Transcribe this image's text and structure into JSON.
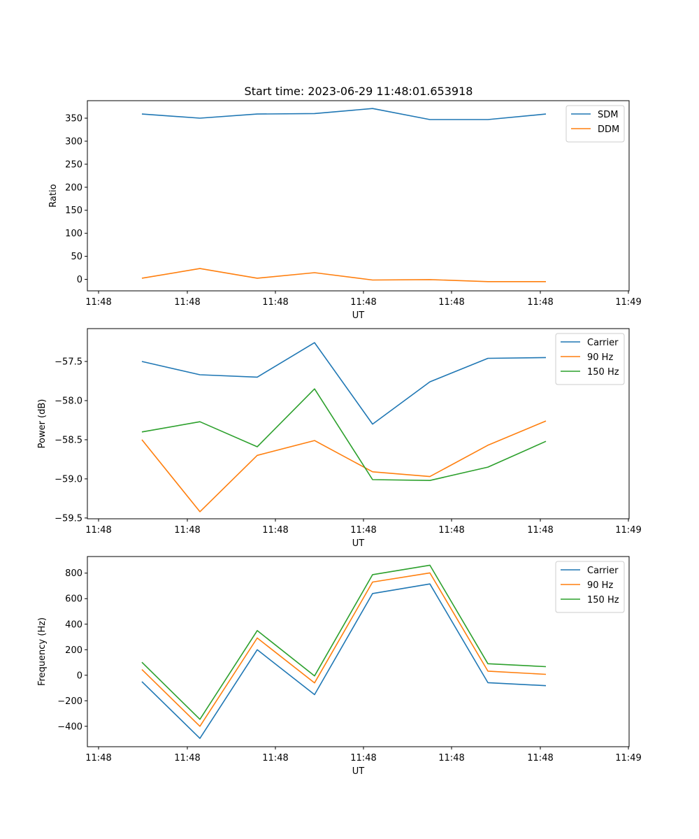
{
  "figure_title": "Start time: 2023-06-29 11:48:01.653918",
  "chart_data": [
    {
      "type": "line",
      "title": "Start time: 2023-06-29 11:48:01.653918",
      "xlabel": "UT",
      "ylabel": "Ratio",
      "x_ticks": [
        "11:48",
        "11:48",
        "11:48",
        "11:48",
        "11:48",
        "11:48",
        "11:48"
      ],
      "last_x_tick": "11:49",
      "y_ticks": [
        "0",
        "50",
        "100",
        "150",
        "200",
        "250",
        "300",
        "350"
      ],
      "y_tick_values": [
        0,
        50,
        100,
        150,
        200,
        250,
        300,
        350
      ],
      "ylim": [
        -25,
        388
      ],
      "legend_position": "top-right",
      "grid": false,
      "series": [
        {
          "name": "SDM",
          "color": "#1f77b4",
          "values": [
            359,
            350,
            359,
            360,
            371,
            347,
            347,
            359
          ]
        },
        {
          "name": "DDM",
          "color": "#ff7f0e",
          "values": [
            2.5,
            23.5,
            2.5,
            14.5,
            -1.5,
            -0.5,
            -5,
            -5
          ]
        }
      ]
    },
    {
      "type": "line",
      "xlabel": "UT",
      "ylabel": "Power (dB)",
      "x_ticks": [
        "11:48",
        "11:48",
        "11:48",
        "11:48",
        "11:48",
        "11:48",
        "11:48"
      ],
      "last_x_tick": "11:49",
      "y_ticks": [
        "−59.5",
        "−59.0",
        "−58.5",
        "−58.0",
        "−57.5"
      ],
      "y_tick_values": [
        -59.5,
        -59.0,
        -58.5,
        -58.0,
        -57.5
      ],
      "ylim": [
        -59.51,
        -57.08
      ],
      "legend_position": "top-right",
      "grid": false,
      "series": [
        {
          "name": "Carrier",
          "color": "#1f77b4",
          "values": [
            -57.5,
            -57.67,
            -57.7,
            -57.26,
            -58.3,
            -57.76,
            -57.46,
            -57.45
          ]
        },
        {
          "name": "90 Hz",
          "color": "#ff7f0e",
          "values": [
            -58.5,
            -59.42,
            -58.7,
            -58.51,
            -58.91,
            -58.97,
            -58.57,
            -58.26
          ]
        },
        {
          "name": "150 Hz",
          "color": "#2ca02c",
          "values": [
            -58.4,
            -58.27,
            -58.59,
            -57.85,
            -59.01,
            -59.02,
            -58.85,
            -58.52
          ]
        }
      ]
    },
    {
      "type": "line",
      "xlabel": "UT",
      "ylabel": "Frequency (Hz)",
      "x_ticks": [
        "11:48",
        "11:48",
        "11:48",
        "11:48",
        "11:48",
        "11:48",
        "11:48"
      ],
      "last_x_tick": "11:49",
      "y_ticks": [
        "−400",
        "−200",
        "0",
        "200",
        "400",
        "600",
        "800"
      ],
      "y_tick_values": [
        -400,
        -200,
        0,
        200,
        400,
        600,
        800
      ],
      "ylim": [
        -560,
        930
      ],
      "legend_position": "top-right",
      "grid": false,
      "series": [
        {
          "name": "Carrier",
          "color": "#1f77b4",
          "values": [
            -50,
            -495,
            200,
            -152,
            640,
            715,
            -58,
            -82
          ]
        },
        {
          "name": "90 Hz",
          "color": "#ff7f0e",
          "values": [
            45,
            -400,
            292,
            -60,
            730,
            802,
            32,
            7
          ]
        },
        {
          "name": "150 Hz",
          "color": "#2ca02c",
          "values": [
            102,
            -345,
            350,
            -5,
            788,
            862,
            90,
            67
          ]
        }
      ]
    }
  ]
}
